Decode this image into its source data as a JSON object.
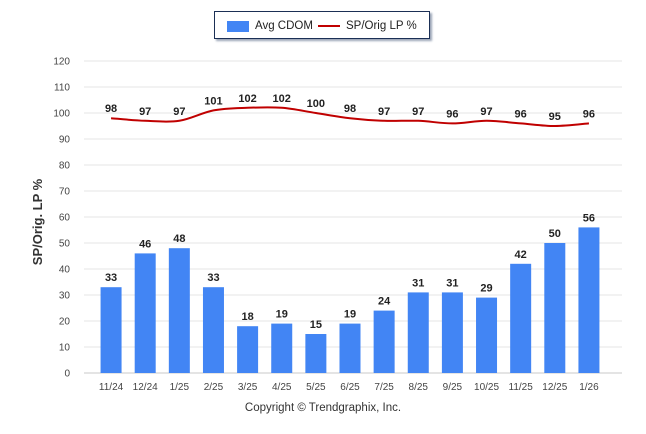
{
  "chart_data": {
    "type": "bar",
    "categories": [
      "11/24",
      "12/24",
      "1/25",
      "2/25",
      "3/25",
      "4/25",
      "5/25",
      "6/25",
      "7/25",
      "8/25",
      "9/25",
      "10/25",
      "11/25",
      "12/25",
      "1/26"
    ],
    "series": [
      {
        "name": "Avg CDOM",
        "kind": "bar",
        "color": "#4285f4",
        "values": [
          33,
          46,
          48,
          33,
          18,
          19,
          15,
          19,
          24,
          31,
          31,
          29,
          42,
          50,
          56
        ]
      },
      {
        "name": "SP/Orig LP %",
        "kind": "line",
        "color": "#c00000",
        "values": [
          98,
          97,
          97,
          101,
          102,
          102,
          100,
          98,
          97,
          97,
          96,
          97,
          96,
          95,
          96
        ]
      }
    ],
    "ylabel": "SP/Orig. LP %",
    "xlabel": "",
    "ylim": [
      0,
      120
    ],
    "yticks": [
      0,
      10,
      20,
      30,
      40,
      50,
      60,
      70,
      80,
      90,
      100,
      110,
      120
    ],
    "grid": true,
    "legend": "top-center"
  },
  "footer": {
    "copyright": "Copyright © Trendgraphix, Inc."
  }
}
